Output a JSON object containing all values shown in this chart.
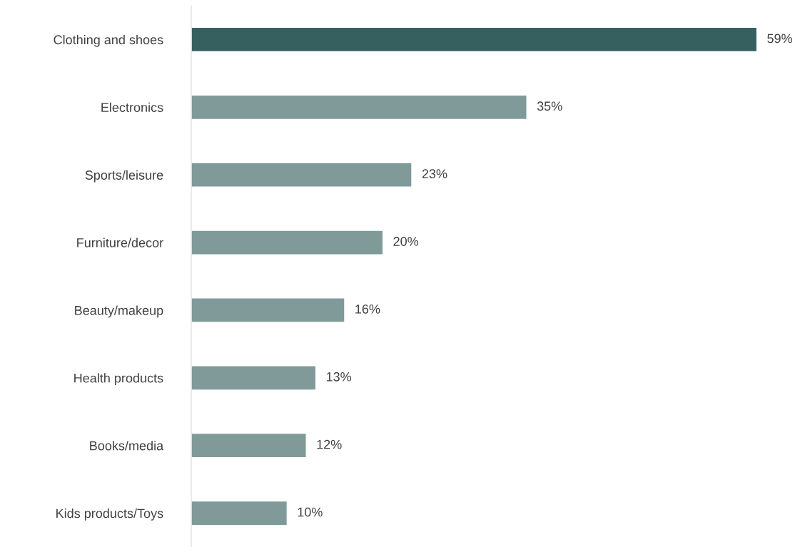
{
  "chart_data": {
    "type": "bar",
    "orientation": "horizontal",
    "categories": [
      "Clothing and shoes",
      "Electronics",
      "Sports/leisure",
      "Furniture/decor",
      "Beauty/makeup",
      "Health products",
      "Books/media",
      "Kids products/Toys"
    ],
    "values": [
      59,
      35,
      23,
      20,
      16,
      13,
      12,
      10
    ],
    "colors": [
      "#36605f",
      "#7f9a99",
      "#7f9a99",
      "#7f9a99",
      "#7f9a99",
      "#7f9a99",
      "#7f9a99",
      "#7f9a99"
    ],
    "value_labels": [
      "59%",
      "35%",
      "23%",
      "20%",
      "16%",
      "13%",
      "12%",
      "10%"
    ],
    "grid": false,
    "legend": false,
    "tick_labels": "y"
  }
}
